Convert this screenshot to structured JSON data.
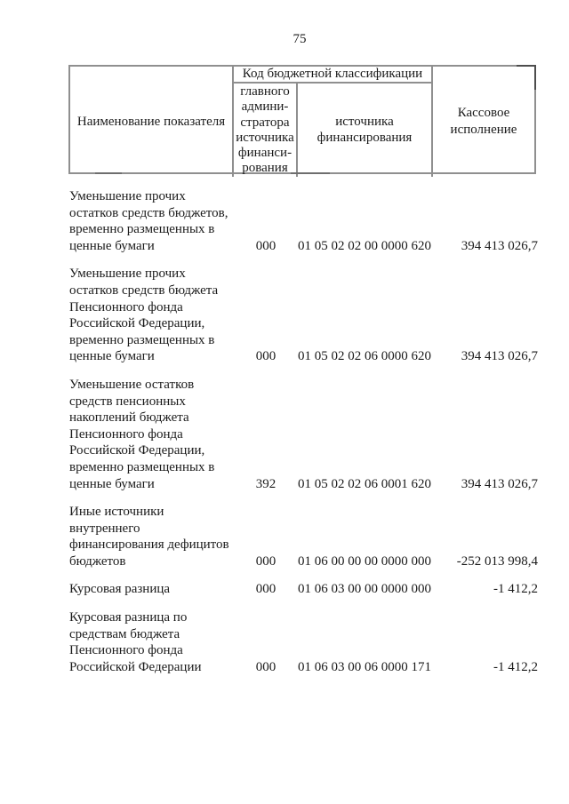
{
  "page": {
    "number": "75"
  },
  "colors": {
    "border": "#8f8f8f",
    "text": "#1b1b1b",
    "background": "#ffffff"
  },
  "table": {
    "header": {
      "indicator": "Наименование показателя",
      "kbk_group": "Код бюджетной классификации",
      "admin_source": "главного\nадмини-\nстратора\nисточника\nфинанси-\nрования",
      "funding_source": "источника\nфинансирования",
      "cash_execution": "Кассовое\nисполнение"
    },
    "rows": [
      {
        "name": "Уменьшение прочих\nостатков средств бюджетов,\nвременно размещенных в\nценные бумаги",
        "admin_code": "000",
        "classification_code": "01 05 02 02 00 0000 620",
        "cash_execution": "394 413 026,7"
      },
      {
        "name": "Уменьшение прочих\nостатков средств бюджета\nПенсионного фонда\nРоссийской Федерации,\nвременно размещенных в\nценные бумаги",
        "admin_code": "000",
        "classification_code": "01 05 02 02 06 0000 620",
        "cash_execution": "394 413 026,7"
      },
      {
        "name": "Уменьшение остатков\nсредств пенсионных\nнакоплений бюджета\nПенсионного фонда\nРоссийской Федерации,\nвременно размещенных в\nценные бумаги",
        "admin_code": "392",
        "classification_code": "01 05 02 02 06 0001 620",
        "cash_execution": "394 413 026,7"
      },
      {
        "name": "Иные источники\nвнутреннего\nфинансирования дефицитов\nбюджетов",
        "admin_code": "000",
        "classification_code": "01 06 00 00 00 0000 000",
        "cash_execution": "-252 013 998,4"
      },
      {
        "name": "Курсовая разница",
        "admin_code": "000",
        "classification_code": "01 06 03 00 00 0000 000",
        "cash_execution": "-1 412,2"
      },
      {
        "name": "Курсовая разница по\nсредствам бюджета\nПенсионного фонда\nРоссийской Федерации",
        "admin_code": "000",
        "classification_code": "01 06 03 00 06 0000 171",
        "cash_execution": "-1 412,2"
      }
    ]
  }
}
